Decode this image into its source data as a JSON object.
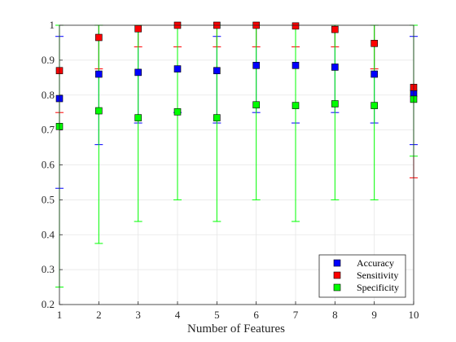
{
  "chart_data": {
    "type": "scatter",
    "title": "",
    "xlabel": "Number of Features",
    "ylabel": "",
    "xlim": [
      1,
      10
    ],
    "ylim": [
      0.2,
      1
    ],
    "x": [
      1,
      2,
      3,
      4,
      5,
      6,
      7,
      8,
      9,
      10
    ],
    "xticks": [
      "1",
      "2",
      "3",
      "4",
      "5",
      "6",
      "7",
      "8",
      "9",
      "10"
    ],
    "yticks": [
      "0.2",
      "0.3",
      "0.4",
      "0.5",
      "0.6",
      "0.7",
      "0.8",
      "0.9",
      "1"
    ],
    "grid": true,
    "legend_position": "bottom-right",
    "series": [
      {
        "name": "Accuracy",
        "color": "#0000ff",
        "values": [
          0.79,
          0.86,
          0.865,
          0.875,
          0.87,
          0.885,
          0.885,
          0.88,
          0.86,
          0.805
        ],
        "err_low": [
          0.533,
          0.658,
          0.72,
          0.75,
          0.72,
          0.75,
          0.72,
          0.75,
          0.72,
          0.658
        ],
        "err_high": [
          0.968,
          1.0,
          1.0,
          1.0,
          0.968,
          1.0,
          1.0,
          1.0,
          1.0,
          0.968
        ]
      },
      {
        "name": "Sensitivity",
        "color": "#ff0000",
        "values": [
          0.87,
          0.965,
          0.99,
          1.0,
          1.0,
          1.0,
          0.998,
          0.988,
          0.948,
          0.822
        ],
        "err_low": [
          0.75,
          0.875,
          0.938,
          0.938,
          0.938,
          0.938,
          0.938,
          0.938,
          0.875,
          0.563
        ],
        "err_high": [
          1.0,
          1.0,
          1.0,
          1.0,
          1.0,
          1.0,
          1.0,
          1.0,
          1.0,
          1.0
        ]
      },
      {
        "name": "Specificity",
        "color": "#00ff00",
        "values": [
          0.71,
          0.755,
          0.735,
          0.752,
          0.735,
          0.772,
          0.77,
          0.775,
          0.77,
          0.788
        ],
        "err_low": [
          0.25,
          0.375,
          0.438,
          0.5,
          0.438,
          0.5,
          0.438,
          0.5,
          0.5,
          0.625
        ],
        "err_high": [
          1.0,
          1.0,
          1.0,
          1.0,
          1.0,
          1.0,
          1.0,
          1.0,
          1.0,
          1.0
        ]
      }
    ]
  }
}
